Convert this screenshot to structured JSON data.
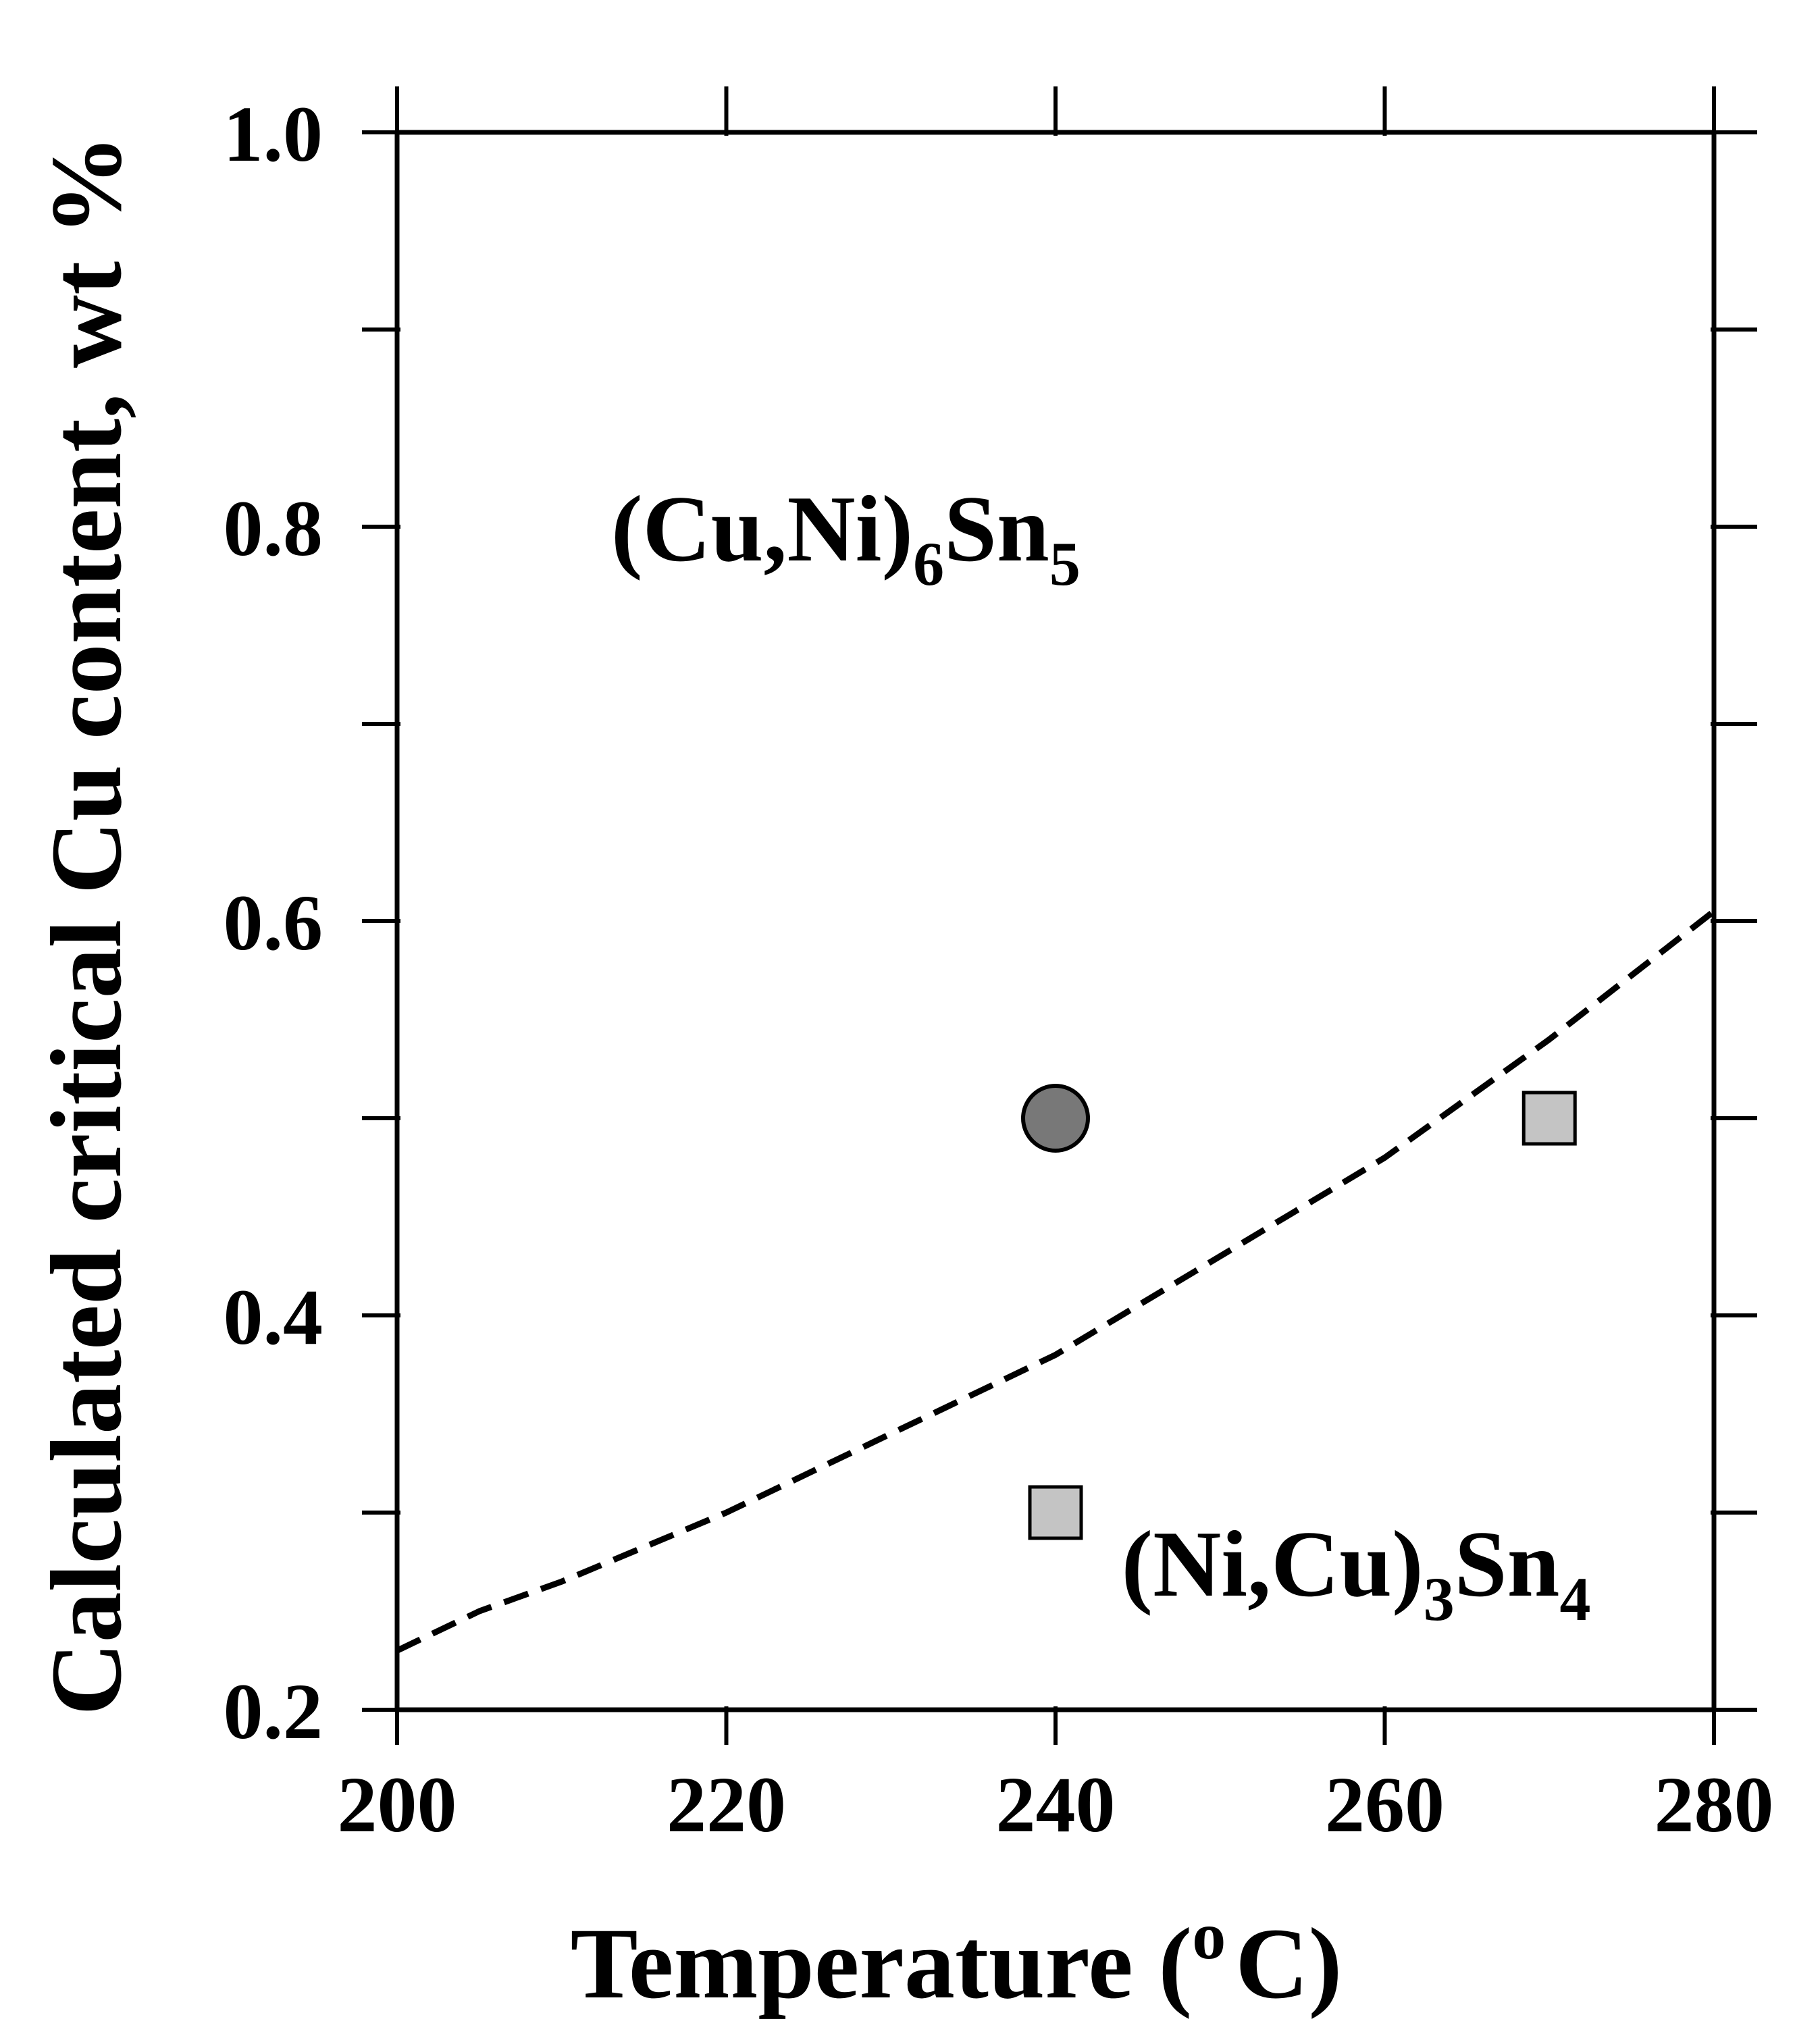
{
  "chart_data": {
    "type": "line",
    "xlabel": "Temperature (",
    "xlabel_sup": "o",
    "xlabel_end": "C)",
    "ylabel": "Calculated critical Cu content, wt %",
    "xlim": [
      200,
      280
    ],
    "ylim": [
      0.2,
      1.0
    ],
    "x_ticks": [
      "200",
      "220",
      "240",
      "260",
      "280"
    ],
    "y_ticks": [
      "0.2",
      "0.4",
      "0.6",
      "0.8",
      "1.0"
    ],
    "x_tick_values": [
      200,
      220,
      240,
      260,
      280
    ],
    "y_tick_values": [
      0.2,
      0.4,
      0.6,
      0.8,
      1.0
    ],
    "y_minor_tick_values": [
      0.3,
      0.5,
      0.7,
      0.9
    ],
    "grid": false,
    "series": [
      {
        "style": "dashed",
        "color": "#000000",
        "x": [
          200,
          205,
          210,
          220,
          230,
          240,
          250,
          260,
          270,
          280
        ],
        "y": [
          0.23,
          0.25,
          0.265,
          0.3,
          0.34,
          0.38,
          0.43,
          0.48,
          0.54,
          0.605
        ]
      }
    ],
    "points": [
      {
        "marker": "circle",
        "x": 240,
        "y": 0.5,
        "color": "#787878"
      },
      {
        "marker": "square",
        "x": 270,
        "y": 0.5,
        "color": "#c4c4c4"
      },
      {
        "marker": "square",
        "x": 240,
        "y": 0.3,
        "color": "#c4c4c4"
      }
    ],
    "annotations": [
      {
        "text": "(Cu,Ni)",
        "sub1": "6",
        "mid": "Sn",
        "sub2": "5",
        "x": 213,
        "y": 0.8
      },
      {
        "text": "(Ni,Cu)",
        "sub1": "3",
        "mid": "Sn",
        "sub2": "4",
        "x": 244,
        "y": 0.275
      }
    ]
  }
}
